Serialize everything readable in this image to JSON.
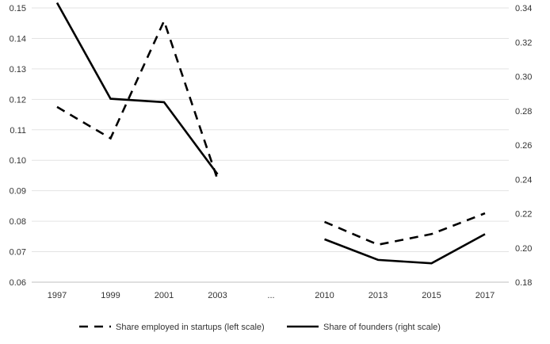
{
  "chart_data": {
    "type": "line",
    "categories": [
      "1997",
      "1999",
      "2001",
      "2003",
      "...",
      "2010",
      "2013",
      "2015",
      "2017"
    ],
    "y_left": {
      "range": [
        0.06,
        0.15
      ],
      "ticks": [
        "0.06",
        "0.07",
        "0.08",
        "0.09",
        "0.10",
        "0.11",
        "0.12",
        "0.13",
        "0.14",
        "0.15"
      ]
    },
    "y_right": {
      "range": [
        0.18,
        0.34
      ],
      "ticks": [
        "0.18",
        "0.20",
        "0.22",
        "0.24",
        "0.26",
        "0.28",
        "0.30",
        "0.32",
        "0.34"
      ]
    },
    "grid": "horizontal",
    "legend_position": "bottom",
    "series": [
      {
        "name": "Share employed in startups (left scale)",
        "axis": "left",
        "style": "dashed",
        "color": "#000000",
        "values": [
          0.1175,
          0.1072,
          0.1457,
          0.0937,
          null,
          0.0798,
          0.0723,
          0.0758,
          0.0826
        ]
      },
      {
        "name": "Share of founders (right scale)",
        "axis": "right",
        "style": "solid",
        "color": "#000000",
        "values": [
          0.343,
          0.287,
          0.285,
          0.243,
          null,
          0.205,
          0.193,
          0.191,
          0.208
        ]
      }
    ]
  }
}
